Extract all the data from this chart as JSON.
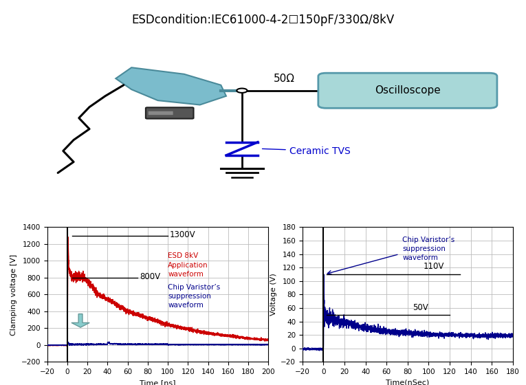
{
  "title": "ESDcondition:IEC61000-4-2☐150pF/330Ω/8kV",
  "title_fontsize": 12,
  "background_color": "#ffffff",
  "left_plot": {
    "xlim": [
      -20,
      200
    ],
    "ylim": [
      -200,
      1400
    ],
    "xticks": [
      -20,
      0,
      20,
      40,
      60,
      80,
      100,
      120,
      140,
      160,
      180,
      200
    ],
    "yticks": [
      -200,
      0,
      200,
      400,
      600,
      800,
      1000,
      1200,
      1400
    ],
    "xlabel": "Time [ns]",
    "ylabel": "Clamping voltage [V]",
    "label1300": "1300V",
    "label800": "800V",
    "red_label": "ESD 8kV\nApplication\nwaveform",
    "blue_label": "Chip Varistor’s\nsuppression\nwaveform"
  },
  "right_plot": {
    "xlim": [
      -20,
      180
    ],
    "ylim": [
      -20,
      180
    ],
    "xticks": [
      -20,
      0,
      20,
      40,
      60,
      80,
      100,
      120,
      140,
      160,
      180
    ],
    "yticks": [
      -20,
      0,
      20,
      40,
      60,
      80,
      100,
      120,
      140,
      160,
      180
    ],
    "xlabel": "Time(nSec)",
    "ylabel": "Voltage (V)",
    "label110": "110V",
    "label50": "50V",
    "blue_label": "Chip Varistor’s\nsuppression\nwaveform"
  },
  "oscilloscope_label": "Oscilloscope",
  "resistor_label": "50Ω",
  "tvs_label": "Ceramic TVS",
  "osc_box_color": "#a8d8d8",
  "red_color": "#cc0000",
  "dark_blue": "#00008b",
  "arrow_color": "#88cccc",
  "grid_color": "#bbbbbb",
  "tvs_blue": "#0000cc",
  "gun_color": "#7bbccc",
  "gun_edge": "#4a8a9a"
}
